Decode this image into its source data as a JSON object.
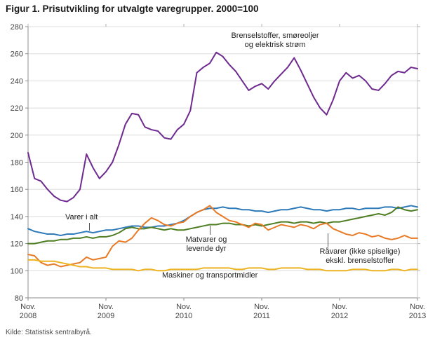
{
  "title": "Figur 1. Prisutvikling for utvalgte varegrupper. 2000=100",
  "source": "Kilde: Statistisk sentralbyrå.",
  "annotations": {
    "brenselstoffer": {
      "line1": "Brenselstoffer, smøreoljer",
      "line2": "og elektrisk strøm"
    },
    "varer": {
      "line1": "Varer i alt"
    },
    "matvarer": {
      "line1": "Matvarer og",
      "line2": "levende dyr"
    },
    "raavarer": {
      "line1": "Råvarer (ikke spiselige)",
      "line2": "ekskl. brenselstoffer"
    },
    "maskiner": {
      "line1": "Maskiner og transportmidler"
    }
  },
  "chart_data": {
    "type": "line",
    "title": "Figur 1. Prisutvikling for utvalgte varegrupper. 2000=100",
    "xlabel": "",
    "ylabel": "",
    "x_unit": "month",
    "x_range": "Nov. 2008 – Nov. 2013",
    "ylim": [
      80,
      280
    ],
    "y_tick_step": 20,
    "grid": true,
    "legend_position": "labels-on-plot",
    "x_ticks": [
      {
        "pos": 0,
        "month": "Nov.",
        "year": "2008"
      },
      {
        "pos": 12,
        "month": "Nov.",
        "year": "2009"
      },
      {
        "pos": 24,
        "month": "Nov.",
        "year": "2010"
      },
      {
        "pos": 36,
        "month": "Nov.",
        "year": "2011"
      },
      {
        "pos": 48,
        "month": "Nov.",
        "year": "2012"
      },
      {
        "pos": 60,
        "month": "Nov.",
        "year": "2013"
      }
    ],
    "series": [
      {
        "name": "Brenselstoffer, smøreoljer og elektrisk strøm",
        "color": "#6e2a8e",
        "values": [
          187,
          168,
          166,
          160,
          155,
          152,
          151,
          154,
          160,
          186,
          176,
          168,
          173,
          180,
          193,
          208,
          216,
          215,
          206,
          204,
          203,
          198,
          197,
          204,
          208,
          218,
          246,
          250,
          253,
          261,
          258,
          252,
          247,
          240,
          233,
          236,
          238,
          234,
          240,
          245,
          250,
          257,
          248,
          238,
          228,
          220,
          215,
          226,
          240,
          246,
          242,
          244,
          240,
          234,
          233,
          238,
          244,
          247,
          246,
          250,
          249
        ]
      },
      {
        "name": "Varer i alt",
        "color": "#2f7ab9",
        "values": [
          131,
          129,
          128,
          127,
          127,
          126,
          127,
          127,
          128,
          129,
          128,
          129,
          130,
          130,
          131,
          132,
          133,
          133,
          132,
          132,
          133,
          133,
          134,
          135,
          137,
          140,
          143,
          145,
          146,
          146,
          147,
          146,
          146,
          145,
          145,
          144,
          144,
          143,
          144,
          145,
          145,
          146,
          147,
          146,
          145,
          145,
          144,
          145,
          145,
          146,
          146,
          145,
          146,
          146,
          146,
          147,
          147,
          146,
          147,
          148,
          147
        ]
      },
      {
        "name": "Matvarer og levende dyr",
        "color": "#4e7e22",
        "values": [
          120,
          120,
          121,
          122,
          122,
          123,
          123,
          124,
          124,
          125,
          124,
          125,
          125,
          126,
          128,
          131,
          132,
          131,
          131,
          132,
          131,
          130,
          131,
          130,
          130,
          131,
          132,
          133,
          134,
          134,
          135,
          135,
          134,
          134,
          133,
          134,
          133,
          134,
          135,
          136,
          136,
          135,
          136,
          136,
          135,
          136,
          135,
          136,
          136,
          137,
          138,
          139,
          140,
          141,
          142,
          141,
          143,
          147,
          145,
          144,
          145
        ]
      },
      {
        "name": "Råvarer (ikke spiselige) ekskl. brenselstoffer",
        "color": "#e87a25",
        "values": [
          112,
          111,
          106,
          104,
          105,
          103,
          104,
          105,
          106,
          110,
          108,
          109,
          110,
          118,
          122,
          121,
          124,
          130,
          135,
          139,
          137,
          134,
          133,
          135,
          136,
          140,
          143,
          145,
          148,
          143,
          140,
          137,
          136,
          134,
          132,
          135,
          134,
          130,
          132,
          134,
          133,
          132,
          134,
          133,
          131,
          134,
          135,
          131,
          129,
          127,
          126,
          128,
          127,
          125,
          126,
          124,
          123,
          124,
          126,
          124,
          124
        ]
      },
      {
        "name": "Maskiner og transportmidler",
        "color": "#edb220",
        "values": [
          108,
          108,
          107,
          107,
          107,
          106,
          105,
          104,
          103,
          103,
          102,
          102,
          102,
          101,
          101,
          101,
          101,
          100,
          101,
          101,
          100,
          100,
          101,
          101,
          101,
          101,
          101,
          102,
          102,
          102,
          102,
          102,
          101,
          101,
          102,
          102,
          102,
          101,
          101,
          102,
          102,
          102,
          102,
          101,
          101,
          101,
          100,
          100,
          100,
          100,
          101,
          101,
          101,
          100,
          100,
          100,
          101,
          101,
          100,
          101,
          101
        ]
      }
    ]
  }
}
